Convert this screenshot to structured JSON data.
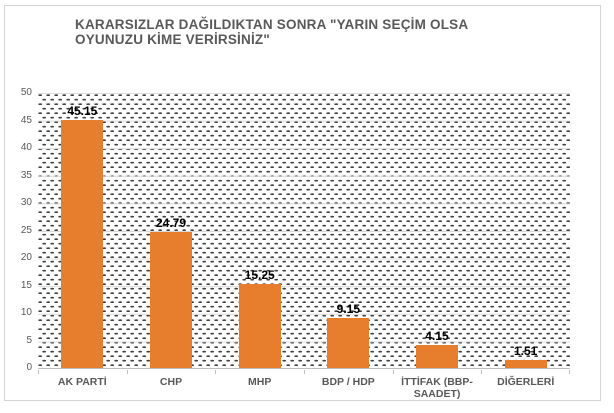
{
  "header": {
    "title_line1": "KARARSIZLAR DAĞILDIKTAN SONRA \"YARIN SEÇİM OLSA",
    "title_line2": "OYUNUZU KİME VERİRSİNİZ\""
  },
  "chart_data": {
    "type": "bar",
    "title": "KARARSIZLAR DAĞILDIKTAN SONRA \"YARIN SEÇİM OLSA OYUNUZU KİME VERİRSİNİZ\"",
    "categories": [
      "AK PARTİ",
      "CHP",
      "MHP",
      "BDP / HDP",
      "İTTİFAK (BBP-SAADET)",
      "DİĞERLERİ"
    ],
    "values": [
      45.15,
      24.79,
      15.25,
      9.15,
      4.15,
      1.51
    ],
    "value_labels": [
      "45.15",
      "24.79",
      "15.25",
      "9.15",
      "4.15",
      "1.51"
    ],
    "xlabel": "",
    "ylabel": "",
    "ylim": [
      0,
      50
    ],
    "yticks": [
      0,
      5,
      10,
      15,
      20,
      25,
      30,
      35,
      40,
      45,
      50
    ],
    "grid": true,
    "legend": false,
    "colors": {
      "bar": "#E67E2E",
      "gridline": "#D9D9D9",
      "axis_line": "#BFBFBF",
      "title_text": "#595959",
      "tick_text": "#595959",
      "value_label_text": "#000000",
      "plot_pattern_dot": "#3F3F3F",
      "figure_border": "#D4D4D4"
    }
  }
}
